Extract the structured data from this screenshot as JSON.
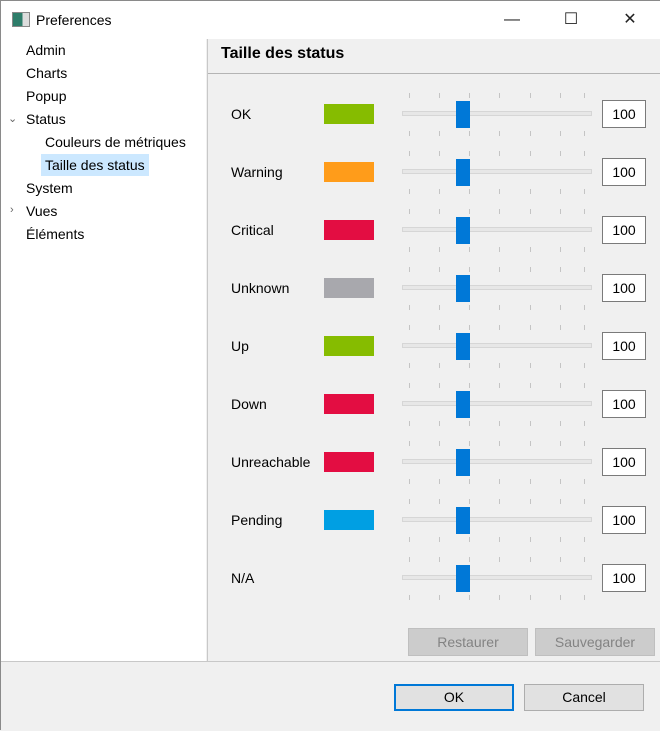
{
  "window": {
    "title": "Preferences"
  },
  "tree": [
    {
      "label": "Admin"
    },
    {
      "label": "Charts"
    },
    {
      "label": "Popup"
    },
    {
      "label": "Status",
      "expanded": true
    },
    {
      "label": "Couleurs de métriques"
    },
    {
      "label": "Taille des status",
      "selected": true
    },
    {
      "label": "System"
    },
    {
      "label": "Vues",
      "expanded": false
    },
    {
      "label": "Éléments"
    }
  ],
  "panel": {
    "title": "Taille des status",
    "rows": [
      {
        "label": "OK",
        "color": "#86bc00",
        "value": "100"
      },
      {
        "label": "Warning",
        "color": "#ff9c1a",
        "value": "100"
      },
      {
        "label": "Critical",
        "color": "#e30d42",
        "value": "100"
      },
      {
        "label": "Unknown",
        "color": "#a8a8ad",
        "value": "100"
      },
      {
        "label": "Up",
        "color": "#86bc00",
        "value": "100"
      },
      {
        "label": "Down",
        "color": "#e30d42",
        "value": "100"
      },
      {
        "label": "Unreachable",
        "color": "#e30d42",
        "value": "100"
      },
      {
        "label": "Pending",
        "color": "#009fe3",
        "value": "100"
      },
      {
        "label": "N/A",
        "color": null,
        "value": "100"
      }
    ],
    "slider_fraction": 0.32,
    "restore_label": "Restaurer",
    "save_label": "Sauvegarder"
  },
  "footer": {
    "ok_label": "OK",
    "cancel_label": "Cancel"
  }
}
